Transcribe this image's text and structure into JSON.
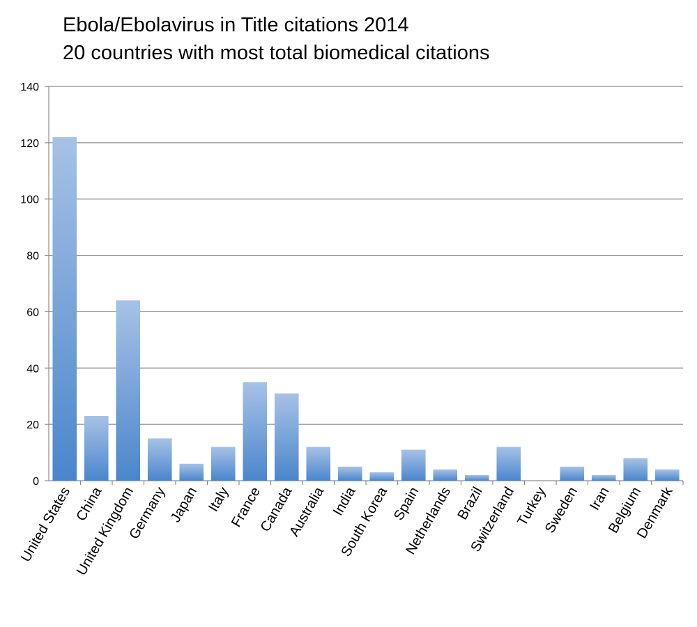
{
  "chart_data": {
    "type": "bar",
    "title": "Ebola/Ebolavirus in Title citations 2014",
    "subtitle": "20 countries with most total biomedical citations",
    "xlabel": "",
    "ylabel": "",
    "ylim": [
      0,
      140
    ],
    "yticks": [
      0,
      20,
      40,
      60,
      80,
      100,
      120,
      140
    ],
    "grid": true,
    "legend": "none",
    "bar_color_top": "#a6c2e6",
    "bar_color_bottom": "#4a86cc",
    "categories": [
      "United States",
      "China",
      "United Kingdom",
      "Germany",
      "Japan",
      "Italy",
      "France",
      "Canada",
      "Australia",
      "India",
      "South Korea",
      "Spain",
      "Netherlands",
      "Brazil",
      "Switzerland",
      "Turkey",
      "Sweden",
      "Iran",
      "Belgium",
      "Denmark"
    ],
    "values": [
      122,
      23,
      64,
      15,
      6,
      12,
      35,
      31,
      12,
      5,
      3,
      11,
      4,
      2,
      12,
      0,
      5,
      2,
      8,
      4
    ]
  }
}
